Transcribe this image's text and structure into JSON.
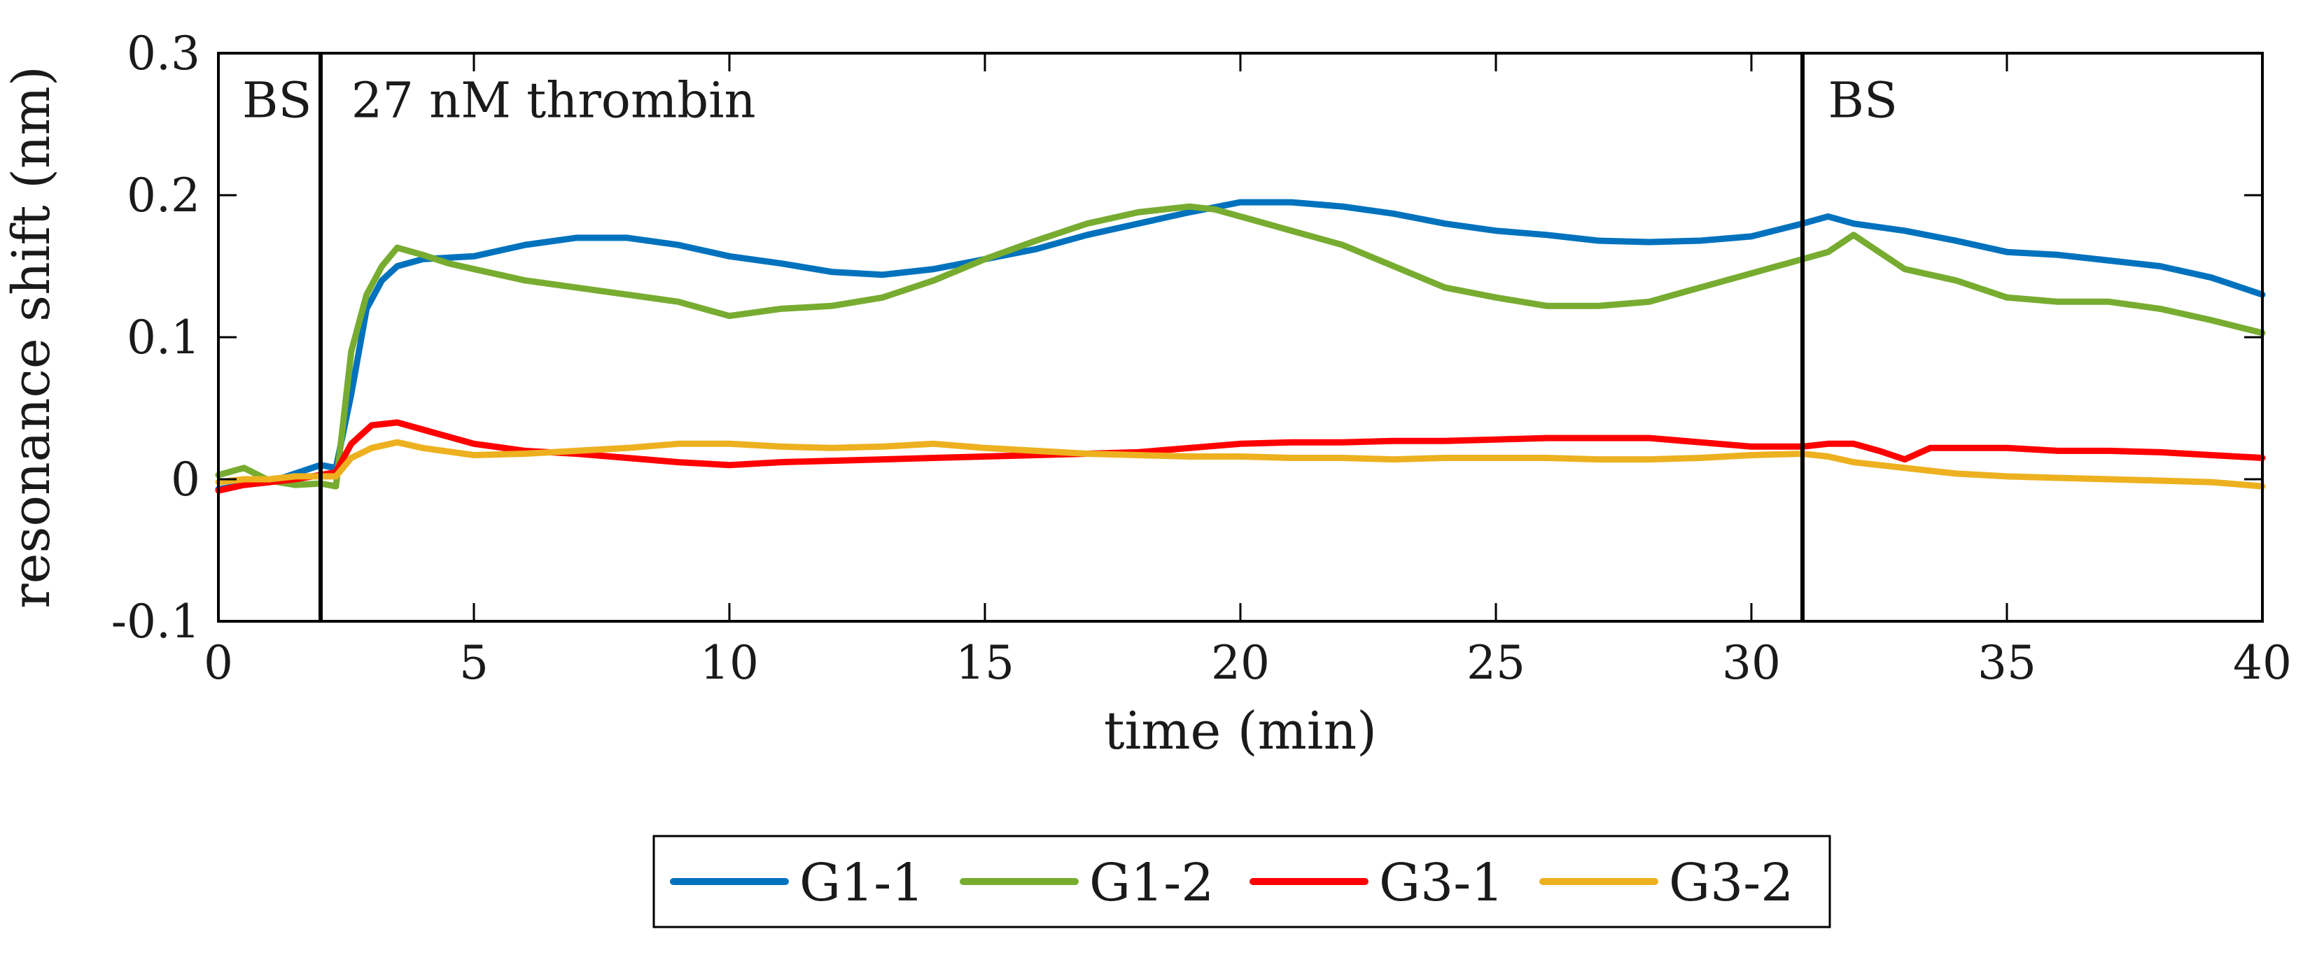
{
  "chart_data": {
    "type": "line",
    "title": "",
    "xlabel": "time (min)",
    "ylabel": "resonance shift (nm)",
    "xlim": [
      0,
      40
    ],
    "ylim": [
      -0.1,
      0.3
    ],
    "xticks": [
      0,
      5,
      10,
      15,
      20,
      25,
      30,
      35,
      40
    ],
    "xtick_labels": [
      "0",
      "5",
      "10",
      "15",
      "20",
      "25",
      "30",
      "35",
      "40"
    ],
    "yticks": [
      -0.1,
      0,
      0.1,
      0.2,
      0.3
    ],
    "ytick_labels": [
      "-0.1",
      "0",
      "0.1",
      "0.2",
      "0.3"
    ],
    "grid": false,
    "legend_position": "bottom-center",
    "vlines": [
      2,
      31
    ],
    "annotations": [
      {
        "text": "BS",
        "x": 0.5,
        "y": 0.255
      },
      {
        "text": "27 nM thrombin",
        "x": 2.6,
        "y": 0.255
      },
      {
        "text": "BS",
        "x": 31.5,
        "y": 0.255
      }
    ],
    "series": [
      {
        "name": "G1-1",
        "color": "#0072BD",
        "points": [
          [
            0,
            -0.007
          ],
          [
            0.5,
            -0.004
          ],
          [
            1,
            -0.002
          ],
          [
            1.5,
            0.004
          ],
          [
            2,
            0.01
          ],
          [
            2.3,
            0.008
          ],
          [
            2.6,
            0.06
          ],
          [
            2.9,
            0.12
          ],
          [
            3.2,
            0.14
          ],
          [
            3.5,
            0.15
          ],
          [
            4,
            0.155
          ],
          [
            5,
            0.157
          ],
          [
            6,
            0.165
          ],
          [
            7,
            0.17
          ],
          [
            8,
            0.17
          ],
          [
            9,
            0.165
          ],
          [
            10,
            0.157
          ],
          [
            11,
            0.152
          ],
          [
            12,
            0.146
          ],
          [
            13,
            0.144
          ],
          [
            14,
            0.148
          ],
          [
            15,
            0.155
          ],
          [
            16,
            0.162
          ],
          [
            17,
            0.172
          ],
          [
            18,
            0.18
          ],
          [
            19,
            0.188
          ],
          [
            20,
            0.195
          ],
          [
            21,
            0.195
          ],
          [
            22,
            0.192
          ],
          [
            23,
            0.187
          ],
          [
            24,
            0.18
          ],
          [
            25,
            0.175
          ],
          [
            26,
            0.172
          ],
          [
            27,
            0.168
          ],
          [
            28,
            0.167
          ],
          [
            29,
            0.168
          ],
          [
            30,
            0.171
          ],
          [
            31,
            0.18
          ],
          [
            31.5,
            0.185
          ],
          [
            32,
            0.18
          ],
          [
            33,
            0.175
          ],
          [
            34,
            0.168
          ],
          [
            35,
            0.16
          ],
          [
            36,
            0.158
          ],
          [
            37,
            0.154
          ],
          [
            38,
            0.15
          ],
          [
            39,
            0.142
          ],
          [
            40,
            0.13
          ]
        ]
      },
      {
        "name": "G1-2",
        "color": "#77AC30",
        "points": [
          [
            0,
            0.003
          ],
          [
            0.5,
            0.008
          ],
          [
            1,
            -0.001
          ],
          [
            1.5,
            -0.004
          ],
          [
            2,
            -0.003
          ],
          [
            2.3,
            -0.005
          ],
          [
            2.6,
            0.09
          ],
          [
            2.9,
            0.13
          ],
          [
            3.2,
            0.15
          ],
          [
            3.5,
            0.163
          ],
          [
            4,
            0.158
          ],
          [
            4.5,
            0.152
          ],
          [
            5,
            0.148
          ],
          [
            6,
            0.14
          ],
          [
            7,
            0.135
          ],
          [
            8,
            0.13
          ],
          [
            9,
            0.125
          ],
          [
            10,
            0.115
          ],
          [
            11,
            0.12
          ],
          [
            12,
            0.122
          ],
          [
            13,
            0.128
          ],
          [
            14,
            0.14
          ],
          [
            15,
            0.155
          ],
          [
            16,
            0.168
          ],
          [
            17,
            0.18
          ],
          [
            18,
            0.188
          ],
          [
            19,
            0.192
          ],
          [
            19.5,
            0.19
          ],
          [
            20,
            0.185
          ],
          [
            21,
            0.175
          ],
          [
            22,
            0.165
          ],
          [
            23,
            0.15
          ],
          [
            24,
            0.135
          ],
          [
            25,
            0.128
          ],
          [
            26,
            0.122
          ],
          [
            27,
            0.122
          ],
          [
            28,
            0.125
          ],
          [
            29,
            0.135
          ],
          [
            30,
            0.145
          ],
          [
            31,
            0.155
          ],
          [
            31.5,
            0.16
          ],
          [
            32,
            0.172
          ],
          [
            32.5,
            0.16
          ],
          [
            33,
            0.148
          ],
          [
            34,
            0.14
          ],
          [
            35,
            0.128
          ],
          [
            36,
            0.125
          ],
          [
            37,
            0.125
          ],
          [
            38,
            0.12
          ],
          [
            39,
            0.112
          ],
          [
            40,
            0.103
          ]
        ]
      },
      {
        "name": "G3-1",
        "color": "#FF0000",
        "points": [
          [
            0,
            -0.008
          ],
          [
            0.5,
            -0.004
          ],
          [
            1,
            -0.002
          ],
          [
            1.5,
            0
          ],
          [
            2,
            0.003
          ],
          [
            2.3,
            0.005
          ],
          [
            2.6,
            0.025
          ],
          [
            3,
            0.038
          ],
          [
            3.5,
            0.04
          ],
          [
            4,
            0.035
          ],
          [
            5,
            0.025
          ],
          [
            6,
            0.02
          ],
          [
            7,
            0.018
          ],
          [
            8,
            0.015
          ],
          [
            9,
            0.012
          ],
          [
            10,
            0.01
          ],
          [
            11,
            0.012
          ],
          [
            12,
            0.013
          ],
          [
            13,
            0.014
          ],
          [
            14,
            0.015
          ],
          [
            15,
            0.016
          ],
          [
            16,
            0.017
          ],
          [
            17,
            0.018
          ],
          [
            18,
            0.019
          ],
          [
            19,
            0.022
          ],
          [
            20,
            0.025
          ],
          [
            21,
            0.026
          ],
          [
            22,
            0.026
          ],
          [
            23,
            0.027
          ],
          [
            24,
            0.027
          ],
          [
            25,
            0.028
          ],
          [
            26,
            0.029
          ],
          [
            27,
            0.029
          ],
          [
            28,
            0.029
          ],
          [
            29,
            0.026
          ],
          [
            30,
            0.023
          ],
          [
            31,
            0.023
          ],
          [
            31.5,
            0.025
          ],
          [
            32,
            0.025
          ],
          [
            32.5,
            0.02
          ],
          [
            33,
            0.014
          ],
          [
            33.5,
            0.022
          ],
          [
            34,
            0.022
          ],
          [
            35,
            0.022
          ],
          [
            36,
            0.02
          ],
          [
            37,
            0.02
          ],
          [
            38,
            0.019
          ],
          [
            39,
            0.017
          ],
          [
            40,
            0.015
          ]
        ]
      },
      {
        "name": "G3-2",
        "color": "#EDB120",
        "points": [
          [
            0,
            -0.002
          ],
          [
            0.5,
            0
          ],
          [
            1,
            0
          ],
          [
            1.5,
            0.002
          ],
          [
            2,
            0.002
          ],
          [
            2.3,
            0.002
          ],
          [
            2.6,
            0.015
          ],
          [
            3,
            0.022
          ],
          [
            3.5,
            0.026
          ],
          [
            4,
            0.022
          ],
          [
            5,
            0.017
          ],
          [
            6,
            0.018
          ],
          [
            7,
            0.02
          ],
          [
            8,
            0.022
          ],
          [
            9,
            0.025
          ],
          [
            10,
            0.025
          ],
          [
            11,
            0.023
          ],
          [
            12,
            0.022
          ],
          [
            13,
            0.023
          ],
          [
            14,
            0.025
          ],
          [
            15,
            0.022
          ],
          [
            16,
            0.02
          ],
          [
            17,
            0.018
          ],
          [
            18,
            0.017
          ],
          [
            19,
            0.016
          ],
          [
            20,
            0.016
          ],
          [
            21,
            0.015
          ],
          [
            22,
            0.015
          ],
          [
            23,
            0.014
          ],
          [
            24,
            0.015
          ],
          [
            25,
            0.015
          ],
          [
            26,
            0.015
          ],
          [
            27,
            0.014
          ],
          [
            28,
            0.014
          ],
          [
            29,
            0.015
          ],
          [
            30,
            0.017
          ],
          [
            31,
            0.018
          ],
          [
            31.5,
            0.016
          ],
          [
            32,
            0.012
          ],
          [
            33,
            0.008
          ],
          [
            34,
            0.004
          ],
          [
            35,
            0.002
          ],
          [
            36,
            0.001
          ],
          [
            37,
            0
          ],
          [
            38,
            -0.001
          ],
          [
            39,
            -0.002
          ],
          [
            40,
            -0.005
          ]
        ]
      }
    ]
  }
}
